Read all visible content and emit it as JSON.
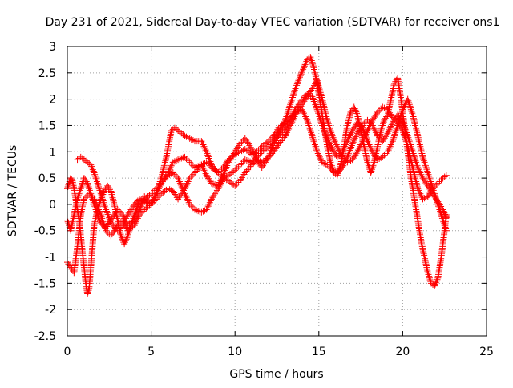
{
  "chart_data": {
    "type": "scatter",
    "title": "Day 231 of 2021, Sidereal Day-to-day VTEC variation (SDTVAR) for receiver ons1",
    "xlabel": "GPS time / hours",
    "ylabel": "SDTVAR / TECUs",
    "xlim": [
      0,
      25
    ],
    "ylim": [
      -2.5,
      3
    ],
    "xticks": [
      0,
      5,
      10,
      15,
      20,
      25
    ],
    "xtick_labels": [
      "0",
      "5",
      "10",
      "15",
      "20",
      "25"
    ],
    "yticks": [
      -2.5,
      -2,
      -1.5,
      -1,
      -0.5,
      0,
      0.5,
      1,
      1.5,
      2,
      2.5,
      3
    ],
    "ytick_labels": [
      "-2.5",
      "-2",
      "-1.5",
      "-1",
      "-0.5",
      "0",
      "0.5",
      "1",
      "1.5",
      "2",
      "2.5",
      "3"
    ],
    "grid": true,
    "marker": "+",
    "series_color": "#ff0000",
    "series": [
      {
        "x": [
          0.0,
          0.1,
          0.2,
          0.3,
          0.4,
          0.5,
          0.6,
          0.7,
          0.8,
          0.9,
          1.0,
          1.1,
          1.2,
          1.3,
          1.4,
          1.5,
          1.6,
          1.8,
          2.0,
          2.2,
          2.4,
          2.6,
          2.8,
          3.0,
          3.2,
          3.4,
          3.6,
          3.8,
          4.0,
          4.3,
          4.6,
          5.0,
          5.3,
          5.6,
          5.9,
          6.2,
          6.4,
          6.6,
          6.8,
          7.0,
          7.3,
          7.6,
          8.0,
          8.3,
          8.6,
          9.0,
          9.3,
          9.6,
          10.0,
          10.3,
          10.6,
          11.0,
          11.3,
          11.6,
          12.0,
          12.3,
          12.6,
          13.0,
          13.3,
          13.6,
          13.9,
          14.1,
          14.3,
          14.5,
          14.7,
          14.9,
          15.1,
          15.3,
          15.5,
          15.7,
          15.9,
          16.1,
          16.3,
          16.5,
          16.7,
          16.9,
          17.1,
          17.3,
          17.5,
          17.7,
          17.9,
          18.1,
          18.3,
          18.5,
          18.7,
          18.9,
          19.1,
          19.3,
          19.5,
          19.7,
          19.9,
          20.1,
          20.3,
          20.5,
          20.7,
          20.9,
          21.1,
          21.3,
          21.5,
          21.7,
          21.9,
          22.1,
          22.3,
          22.5,
          22.6
        ],
        "y": [
          0.3,
          0.4,
          0.5,
          0.45,
          0.3,
          0.1,
          -0.1,
          -0.3,
          -0.6,
          -0.9,
          -1.2,
          -1.5,
          -1.7,
          -1.6,
          -1.2,
          -0.8,
          -0.4,
          -0.1,
          0.1,
          0.25,
          0.35,
          0.25,
          0.0,
          -0.3,
          -0.6,
          -0.75,
          -0.6,
          -0.4,
          -0.2,
          0.05,
          0.15,
          0.0,
          0.2,
          0.5,
          0.9,
          1.4,
          1.45,
          1.4,
          1.35,
          1.3,
          1.25,
          1.2,
          1.2,
          1.0,
          0.75,
          0.6,
          0.5,
          0.55,
          0.65,
          0.75,
          0.85,
          0.8,
          0.9,
          1.0,
          1.1,
          1.2,
          1.35,
          1.6,
          1.9,
          2.2,
          2.45,
          2.6,
          2.75,
          2.8,
          2.6,
          2.3,
          1.9,
          1.5,
          1.1,
          0.8,
          0.6,
          0.55,
          0.75,
          1.1,
          1.5,
          1.75,
          1.85,
          1.7,
          1.4,
          1.1,
          0.8,
          0.6,
          0.8,
          1.1,
          1.4,
          1.6,
          1.7,
          2.0,
          2.3,
          2.4,
          2.0,
          1.5,
          1.0,
          0.5,
          0.1,
          -0.3,
          -0.7,
          -1.0,
          -1.3,
          -1.5,
          -1.55,
          -1.4,
          -1.0,
          -0.5,
          -0.2
        ]
      },
      {
        "x": [
          0.0,
          0.2,
          0.4,
          0.6,
          0.8,
          1.0,
          1.2,
          1.4,
          1.6,
          1.8,
          2.0,
          2.3,
          2.6,
          3.0,
          3.3,
          3.6,
          4.0,
          4.3,
          4.6,
          5.0,
          5.3,
          5.6,
          6.0,
          6.3,
          6.6,
          7.0,
          7.3,
          7.6,
          8.0,
          8.3,
          8.6,
          9.0,
          9.3,
          9.6,
          10.0,
          10.3,
          10.6,
          11.0,
          11.3,
          11.6,
          12.0,
          12.3,
          12.6,
          13.0,
          13.3,
          13.6,
          14.0,
          14.3,
          14.6,
          14.9,
          15.2,
          15.5,
          15.8,
          16.1,
          16.4,
          16.7,
          17.0,
          17.3,
          17.6,
          17.9,
          18.2,
          18.5,
          18.8,
          19.1,
          19.4,
          19.7,
          20.0,
          20.3,
          20.6,
          20.9,
          21.2,
          21.5,
          21.8,
          22.1,
          22.4,
          22.6
        ],
        "y": [
          -0.3,
          -0.5,
          -0.2,
          0.1,
          0.3,
          0.5,
          0.4,
          0.2,
          0.0,
          -0.2,
          -0.35,
          -0.45,
          -0.3,
          -0.1,
          -0.2,
          -0.4,
          -0.3,
          -0.1,
          0.1,
          0.2,
          0.3,
          0.4,
          0.6,
          0.8,
          0.85,
          0.9,
          0.8,
          0.7,
          0.75,
          0.8,
          0.7,
          0.6,
          0.7,
          0.85,
          0.95,
          1.0,
          1.05,
          0.95,
          1.0,
          1.1,
          1.2,
          1.3,
          1.45,
          1.55,
          1.65,
          1.75,
          1.8,
          1.6,
          1.3,
          1.0,
          0.8,
          0.75,
          0.65,
          0.6,
          0.7,
          0.9,
          1.15,
          1.35,
          1.5,
          1.6,
          1.5,
          1.3,
          1.2,
          1.35,
          1.55,
          1.7,
          1.55,
          1.3,
          1.0,
          0.7,
          0.5,
          0.35,
          0.2,
          0.05,
          -0.1,
          -0.25
        ]
      },
      {
        "x": [
          0.0,
          0.2,
          0.4,
          0.6,
          0.8,
          1.0,
          1.3,
          1.6,
          2.0,
          2.3,
          2.6,
          3.0,
          3.3,
          3.6,
          4.0,
          4.3,
          4.6,
          5.0,
          5.3,
          5.6,
          6.0,
          6.3,
          6.6,
          7.0,
          7.3,
          7.6,
          8.0,
          8.3,
          8.6,
          9.0,
          9.3,
          9.6,
          10.0,
          10.3,
          10.6,
          11.0,
          11.3,
          11.6,
          12.0,
          12.3,
          12.6,
          13.0,
          13.3,
          13.6,
          14.0,
          14.3,
          14.6,
          14.9,
          15.2,
          15.5,
          15.8,
          16.1,
          16.4,
          16.7,
          17.0,
          17.3,
          17.6,
          17.9,
          18.2,
          18.5,
          18.8,
          19.1,
          19.4,
          19.7,
          20.0,
          20.3,
          20.6,
          20.9,
          21.2,
          21.5,
          21.8,
          22.1,
          22.4,
          22.6
        ],
        "y": [
          -1.1,
          -1.2,
          -1.3,
          -0.8,
          -0.2,
          0.1,
          0.2,
          0.1,
          -0.2,
          -0.5,
          -0.6,
          -0.4,
          -0.3,
          -0.5,
          -0.4,
          -0.2,
          -0.1,
          0.0,
          0.1,
          0.2,
          0.3,
          0.25,
          0.1,
          0.3,
          0.5,
          0.6,
          0.75,
          0.55,
          0.4,
          0.35,
          0.55,
          0.8,
          1.0,
          1.15,
          1.25,
          1.05,
          0.85,
          0.7,
          0.9,
          1.15,
          1.3,
          1.45,
          1.6,
          1.8,
          2.0,
          2.1,
          2.05,
          1.8,
          1.5,
          1.25,
          1.05,
          0.9,
          1.0,
          1.2,
          1.4,
          1.55,
          1.45,
          1.2,
          1.0,
          0.85,
          0.9,
          1.0,
          1.2,
          1.5,
          1.8,
          2.0,
          1.7,
          1.3,
          0.9,
          0.6,
          0.3,
          0.0,
          -0.3,
          -0.5
        ]
      },
      {
        "x": [
          0.6,
          0.8,
          1.0,
          1.2,
          1.4,
          1.6,
          1.8,
          2.0,
          2.3,
          2.6,
          3.0,
          3.3,
          3.6,
          4.0,
          4.3,
          4.6,
          5.0,
          5.3,
          5.6,
          6.0,
          6.3,
          6.6,
          7.0,
          7.3,
          7.6,
          8.0,
          8.3,
          8.6,
          9.0,
          9.3,
          9.6,
          10.0,
          10.3,
          10.6,
          11.0,
          11.3,
          11.6,
          12.0,
          12.3,
          12.6,
          13.0,
          13.3,
          13.6,
          14.0,
          14.3,
          14.6,
          14.9,
          15.2,
          15.5,
          15.8,
          16.1,
          16.4,
          16.7,
          17.0,
          17.3,
          17.6,
          17.9,
          18.2,
          18.5,
          18.8,
          19.1,
          19.4,
          19.7,
          20.0,
          20.3,
          20.6,
          20.9,
          21.2,
          21.5,
          21.8,
          22.1,
          22.4,
          22.6
        ],
        "y": [
          0.85,
          0.9,
          0.85,
          0.8,
          0.75,
          0.6,
          0.4,
          0.2,
          -0.1,
          -0.35,
          -0.5,
          -0.4,
          -0.2,
          0.0,
          0.1,
          0.05,
          0.0,
          0.2,
          0.4,
          0.55,
          0.6,
          0.5,
          0.2,
          0.0,
          -0.1,
          -0.15,
          -0.1,
          0.1,
          0.3,
          0.5,
          0.45,
          0.35,
          0.45,
          0.6,
          0.75,
          0.85,
          0.8,
          0.9,
          1.0,
          1.15,
          1.3,
          1.5,
          1.7,
          1.9,
          2.05,
          2.2,
          2.35,
          2.0,
          1.6,
          1.3,
          1.1,
          0.9,
          0.8,
          0.85,
          1.0,
          1.2,
          1.4,
          1.6,
          1.75,
          1.85,
          1.8,
          1.65,
          1.55,
          1.4,
          1.1,
          0.7,
          0.3,
          0.1,
          0.15,
          0.3,
          0.4,
          0.5,
          0.55
        ]
      }
    ]
  }
}
